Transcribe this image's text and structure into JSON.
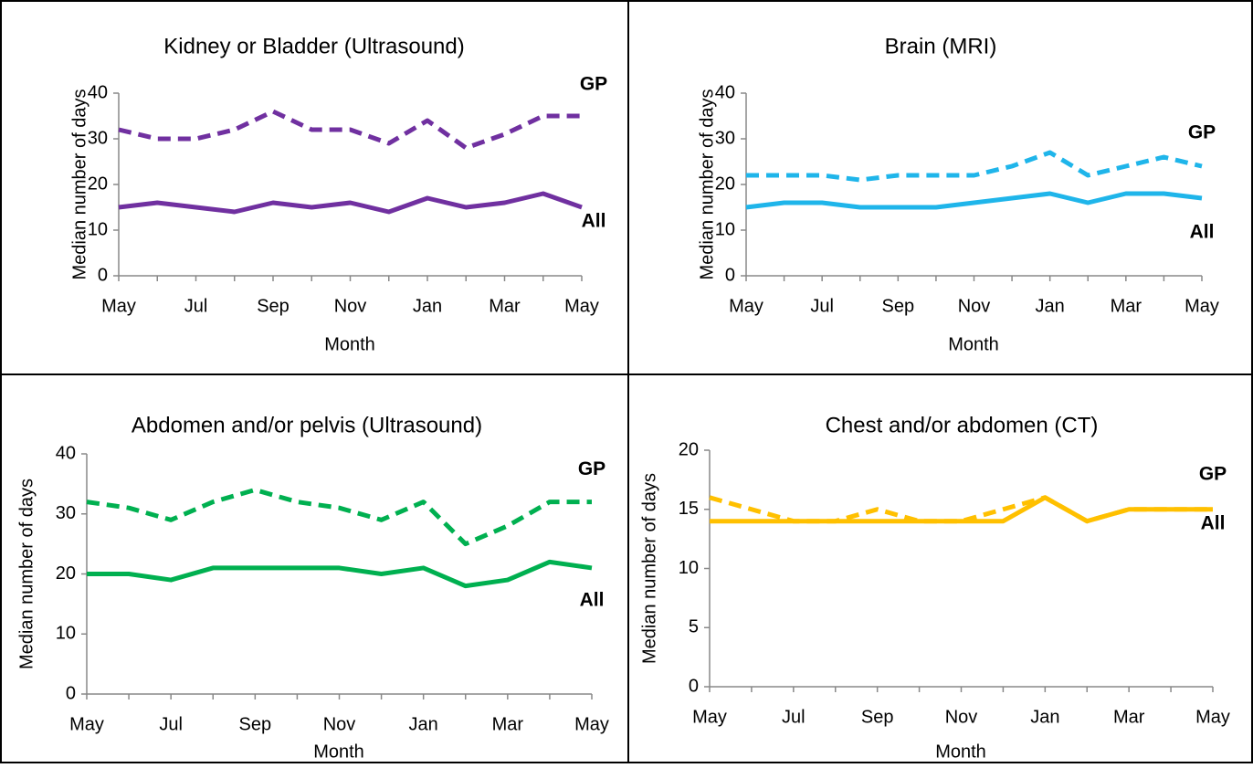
{
  "chart_data": [
    {
      "type": "line",
      "title": "Kidney or Bladder (Ultrasound)",
      "x_label": "Month",
      "y_label": "Median number of days",
      "categories": [
        "May",
        null,
        "Jul",
        null,
        "Sep",
        null,
        "Nov",
        null,
        "Jan",
        null,
        "Mar",
        null,
        "May"
      ],
      "ylim": [
        0,
        40
      ],
      "yticks": [
        0,
        10,
        20,
        30,
        40
      ],
      "series": [
        {
          "name": "GP",
          "color": "#7030a0",
          "line_style": "dashed",
          "values": [
            32,
            30,
            30,
            32,
            36,
            32,
            32,
            29,
            34,
            28,
            31,
            35,
            35
          ]
        },
        {
          "name": "All",
          "color": "#7030a0",
          "line_style": "solid",
          "values": [
            15,
            16,
            15,
            14,
            16,
            15,
            16,
            14,
            17,
            15,
            16,
            18,
            15
          ]
        }
      ]
    },
    {
      "type": "line",
      "title": "Brain (MRI)",
      "x_label": "Month",
      "y_label": "Median number of days",
      "categories": [
        "May",
        null,
        "Jul",
        null,
        "Sep",
        null,
        "Nov",
        null,
        "Jan",
        null,
        "Mar",
        null,
        "May"
      ],
      "ylim": [
        0,
        40
      ],
      "yticks": [
        0,
        10,
        20,
        30,
        40
      ],
      "series": [
        {
          "name": "GP",
          "color": "#1fb5ea",
          "line_style": "dashed",
          "values": [
            22,
            22,
            22,
            21,
            22,
            22,
            22,
            24,
            27,
            22,
            24,
            26,
            24
          ]
        },
        {
          "name": "All",
          "color": "#1fb5ea",
          "line_style": "solid",
          "values": [
            15,
            16,
            16,
            15,
            15,
            15,
            16,
            17,
            18,
            16,
            18,
            18,
            17
          ]
        }
      ]
    },
    {
      "type": "line",
      "title": "Abdomen and/or pelvis (Ultrasound)",
      "x_label": "Month",
      "y_label": "Median number of days",
      "categories": [
        "May",
        null,
        "Jul",
        null,
        "Sep",
        null,
        "Nov",
        null,
        "Jan",
        null,
        "Mar",
        null,
        "May"
      ],
      "ylim": [
        0,
        40
      ],
      "yticks": [
        0,
        10,
        20,
        30,
        40
      ],
      "series": [
        {
          "name": "GP",
          "color": "#00b050",
          "line_style": "dashed",
          "values": [
            32,
            31,
            29,
            32,
            34,
            32,
            31,
            29,
            32,
            25,
            28,
            32,
            32
          ]
        },
        {
          "name": "All",
          "color": "#00b050",
          "line_style": "solid",
          "values": [
            20,
            20,
            19,
            21,
            21,
            21,
            21,
            20,
            21,
            18,
            19,
            22,
            21
          ]
        }
      ]
    },
    {
      "type": "line",
      "title": "Chest and/or abdomen (CT)",
      "x_label": "Month",
      "y_label": "Median number of days",
      "categories": [
        "May",
        null,
        "Jul",
        null,
        "Sep",
        null,
        "Nov",
        null,
        "Jan",
        null,
        "Mar",
        null,
        "May"
      ],
      "ylim": [
        0,
        20
      ],
      "yticks": [
        0,
        5,
        10,
        15,
        20
      ],
      "series": [
        {
          "name": "GP",
          "color": "#ffc000",
          "line_style": "dashed",
          "values": [
            16,
            15,
            14,
            14,
            15,
            14,
            14,
            15,
            16,
            14,
            15,
            15,
            15
          ]
        },
        {
          "name": "All",
          "color": "#ffc000",
          "line_style": "solid",
          "values": [
            14,
            14,
            14,
            14,
            14,
            14,
            14,
            14,
            16,
            14,
            15,
            15,
            15
          ]
        }
      ]
    }
  ]
}
